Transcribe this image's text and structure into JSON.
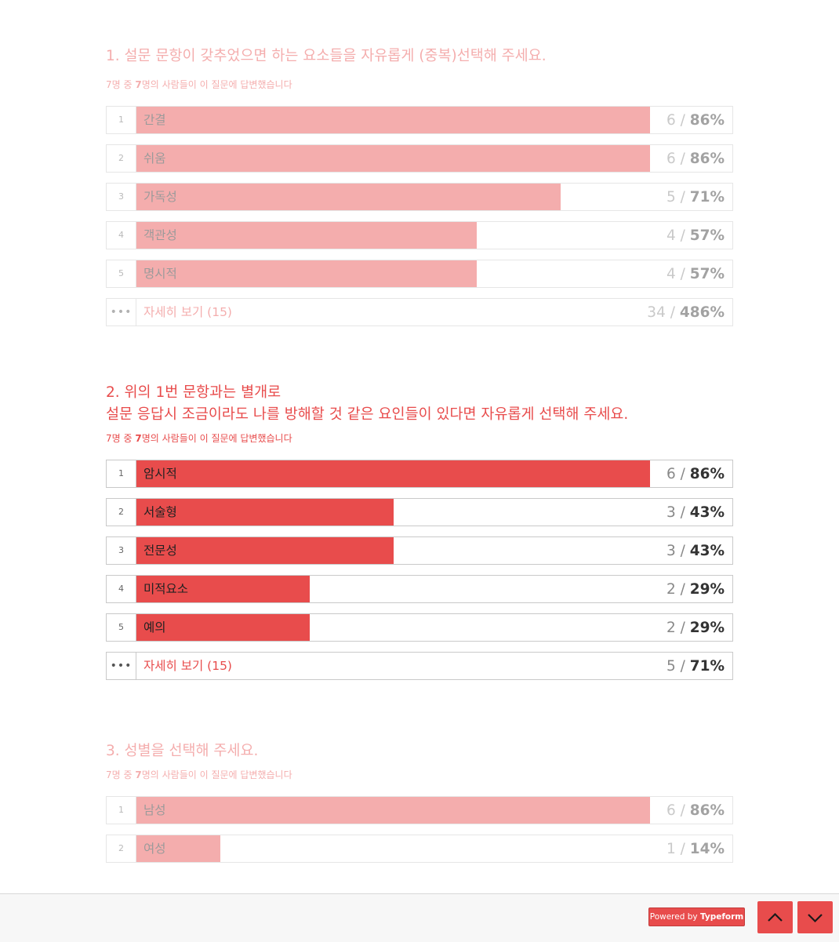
{
  "questions": [
    {
      "title": "1. 설문 문항이 갖추었으면 하는 요소들을 자유롭게 (중복)선택해 주세요.",
      "meta_pre": "7명 중 ",
      "meta_bold": "7",
      "meta_post": "명의 사람들이 이 질문에 답변했습니다",
      "rows": [
        {
          "num": "1",
          "label": "간결",
          "count": "6",
          "sep": " / ",
          "pct": "86%",
          "fraction": 0.86
        },
        {
          "num": "2",
          "label": "쉬움",
          "count": "6",
          "sep": " / ",
          "pct": "86%",
          "fraction": 0.86
        },
        {
          "num": "3",
          "label": "가독성",
          "count": "5",
          "sep": " / ",
          "pct": "71%",
          "fraction": 0.71
        },
        {
          "num": "4",
          "label": "객관성",
          "count": "4",
          "sep": " / ",
          "pct": "57%",
          "fraction": 0.57
        },
        {
          "num": "5",
          "label": "명시적",
          "count": "4",
          "sep": " / ",
          "pct": "57%",
          "fraction": 0.57
        }
      ],
      "more": {
        "icon": "more-dots-icon",
        "dots": "•••",
        "label": "자세히 보기 (15)",
        "count": "34",
        "sep": " / ",
        "pct": "486%"
      }
    },
    {
      "title": "2. 위의 1번 문항과는 별개로\n설문 응답시 조금이라도 나를 방해할 것 같은 요인들이 있다면 자유롭게 선택해 주세요.",
      "meta_pre": "7명 중 ",
      "meta_bold": "7",
      "meta_post": "명의 사람들이 이 질문에 답변했습니다",
      "rows": [
        {
          "num": "1",
          "label": "암시적",
          "count": "6",
          "sep": " / ",
          "pct": "86%",
          "fraction": 0.86
        },
        {
          "num": "2",
          "label": "서술형",
          "count": "3",
          "sep": " / ",
          "pct": "43%",
          "fraction": 0.43
        },
        {
          "num": "3",
          "label": "전문성",
          "count": "3",
          "sep": " / ",
          "pct": "43%",
          "fraction": 0.43
        },
        {
          "num": "4",
          "label": "미적요소",
          "count": "2",
          "sep": " / ",
          "pct": "29%",
          "fraction": 0.29
        },
        {
          "num": "5",
          "label": "예의",
          "count": "2",
          "sep": " / ",
          "pct": "29%",
          "fraction": 0.29
        }
      ],
      "more": {
        "icon": "more-dots-icon",
        "dots": "•••",
        "label": "자세히 보기 (15)",
        "count": "5",
        "sep": " / ",
        "pct": "71%"
      }
    },
    {
      "title": "3. 성별을 선택해 주세요.",
      "meta_pre": "7명 중 ",
      "meta_bold": "7",
      "meta_post": "명의 사람들이 이 질문에 답변했습니다",
      "rows": [
        {
          "num": "1",
          "label": "남성",
          "count": "6",
          "sep": " / ",
          "pct": "86%",
          "fraction": 0.86
        },
        {
          "num": "2",
          "label": "여성",
          "count": "1",
          "sep": " / ",
          "pct": "14%",
          "fraction": 0.14
        }
      ]
    }
  ],
  "footer": {
    "powered_prefix": "Powered by ",
    "powered_brand": "Typeform",
    "prev_icon": "chevron-up-icon",
    "next_icon": "chevron-down-icon"
  },
  "colors": {
    "accent": "#e84c4c",
    "accent_faded": "#f5b3b1"
  }
}
